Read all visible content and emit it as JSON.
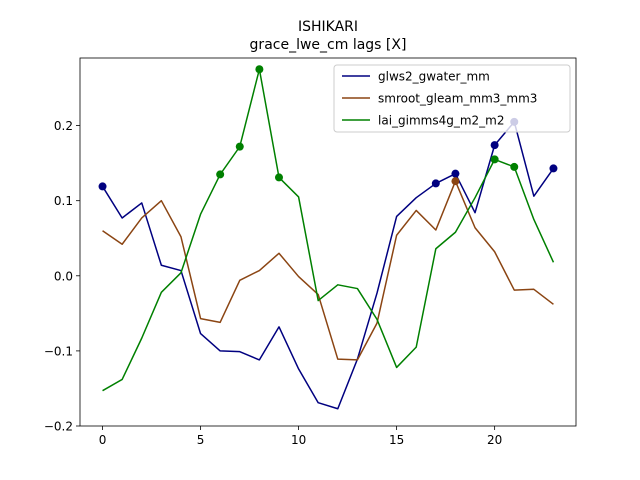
{
  "chart_data": {
    "type": "line",
    "title": "ISHIKARI",
    "subtitle": "grace_lwe_cm lags [X]",
    "xlabel": "",
    "ylabel": "",
    "xlim": [
      -1.15,
      24.15
    ],
    "ylim": [
      -0.2,
      0.29
    ],
    "xticks": [
      0,
      5,
      10,
      15,
      20
    ],
    "yticks": [
      -0.2,
      -0.1,
      0.0,
      0.1,
      0.2
    ],
    "xtick_labels": [
      "0",
      "5",
      "10",
      "15",
      "20"
    ],
    "ytick_labels": [
      "−0.2",
      "−0.1",
      "0.0",
      "0.1",
      "0.2"
    ],
    "grid": false,
    "legend_position": "top-right",
    "x": [
      0,
      1,
      2,
      3,
      4,
      5,
      6,
      7,
      8,
      9,
      10,
      11,
      12,
      13,
      14,
      15,
      16,
      17,
      18,
      19,
      20,
      21,
      22,
      23
    ],
    "series": [
      {
        "name": "glws2_gwater_mm",
        "color": "#000080",
        "values": [
          0.119,
          0.077,
          0.097,
          0.014,
          0.007,
          -0.077,
          -0.1,
          -0.101,
          -0.112,
          -0.068,
          -0.124,
          -0.169,
          -0.177,
          -0.111,
          -0.023,
          0.079,
          0.104,
          0.123,
          0.136,
          0.084,
          0.174,
          0.205,
          0.106,
          0.143
        ],
        "markers": [
          0,
          17,
          18,
          20,
          21,
          23
        ]
      },
      {
        "name": "smroot_gleam_mm3_mm3",
        "color": "#8B4513",
        "values": [
          0.06,
          0.042,
          0.077,
          0.1,
          0.052,
          -0.057,
          -0.062,
          -0.006,
          0.007,
          0.03,
          -0.001,
          -0.025,
          -0.111,
          -0.112,
          -0.063,
          0.054,
          0.087,
          0.061,
          0.126,
          0.064,
          0.032,
          -0.019,
          -0.018,
          -0.038
        ],
        "markers": [
          18
        ]
      },
      {
        "name": "lai_gimms4g_m2_m2",
        "color": "#008000",
        "values": [
          -0.153,
          -0.138,
          -0.083,
          -0.022,
          0.004,
          0.082,
          0.135,
          0.172,
          0.275,
          0.131,
          0.105,
          -0.033,
          -0.012,
          -0.017,
          -0.058,
          -0.122,
          -0.095,
          0.036,
          0.058,
          0.104,
          0.155,
          0.145,
          0.075,
          0.018
        ],
        "markers": [
          6,
          7,
          8,
          9,
          20,
          21
        ]
      }
    ]
  }
}
